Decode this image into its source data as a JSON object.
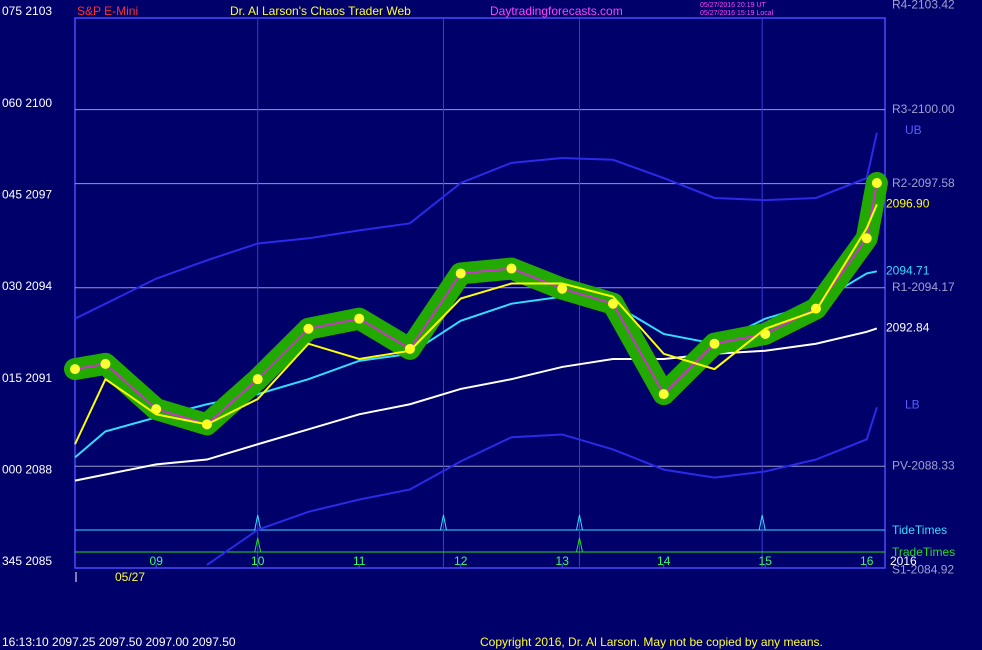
{
  "chart_data": {
    "type": "line",
    "title": "S&P E-Mini",
    "subtitle": "Dr. Al Larson's Chaos Trader Web",
    "site": "Daytradingforecasts.com",
    "timestamps": [
      "05/27/2016 20:19 UT",
      "05/27/2016 15:19 Local"
    ],
    "date_label": "05/27",
    "x": [
      8.2,
      8.5,
      9,
      9.5,
      10,
      10.5,
      11,
      11.5,
      12,
      12.5,
      13,
      13.5,
      14,
      14.5,
      15,
      15.5,
      16,
      16.1
    ],
    "xlim": [
      8.2,
      16.18
    ],
    "xticks": [
      {
        "value": 9,
        "label": "09"
      },
      10,
      11,
      12,
      13,
      14,
      15,
      16
    ],
    "ylim": [
      2085,
      2103
    ],
    "yticks": [
      {
        "value": 2085,
        "label": "345 2085"
      },
      {
        "value": 2088,
        "label": "000 2088"
      },
      {
        "value": 2091,
        "label": "015 2091"
      },
      {
        "value": 2094,
        "label": "030 2094"
      },
      {
        "value": 2097,
        "label": "045 2097"
      },
      {
        "value": 2100,
        "label": "060 2100"
      },
      {
        "value": 2103,
        "label": "075 2103"
      }
    ],
    "levels": [
      {
        "value": 2103.42,
        "label": "R4-2103.42"
      },
      {
        "value": 2100.0,
        "label": "R3-2100.00"
      },
      {
        "value": 2097.58,
        "label": "R2-2097.58"
      },
      {
        "value": 2094.17,
        "label": "R1-2094.17"
      },
      {
        "value": 2088.33,
        "label": "PV-2088.33"
      },
      {
        "value": 2084.92,
        "label": "S1-2084.92"
      }
    ],
    "series": [
      {
        "name": "UB",
        "color": "#2a2ae8",
        "values": [
          2093.16,
          2093.65,
          2094.47,
          2095.07,
          2095.62,
          2095.79,
          2096.05,
          2096.28,
          2097.6,
          2098.26,
          2098.42,
          2098.36,
          2097.76,
          2097.11,
          2097.04,
          2097.11,
          2097.76,
          2099.24
        ]
      },
      {
        "name": "LB",
        "color": "#2a2ae8",
        "values": [
          null,
          null,
          null,
          2085.1,
          2086.25,
          2086.84,
          2087.24,
          2087.57,
          2088.49,
          2089.28,
          2089.37,
          2088.88,
          2088.22,
          2087.96,
          2088.16,
          2088.55,
          2089.21,
          2090.26
        ]
      },
      {
        "color": "#ffffff",
        "values": [
          2087.86,
          2088.06,
          2088.39,
          2088.55,
          2089.05,
          2089.54,
          2090.03,
          2090.36,
          2090.86,
          2091.18,
          2091.58,
          2091.84,
          2091.84,
          2092.01,
          2092.11,
          2092.34,
          2092.73,
          2092.84
        ],
        "value_labels": [
          null,
          null,
          null,
          null,
          null,
          null,
          null,
          null,
          null,
          null,
          null,
          null,
          null,
          null,
          null,
          null,
          null,
          "2092.84"
        ]
      },
      {
        "color": "#33ddff",
        "values": [
          2088.62,
          2089.47,
          2089.93,
          2090.36,
          2090.69,
          2091.18,
          2091.78,
          2092.01,
          2093.09,
          2093.65,
          2093.88,
          2093.65,
          2092.66,
          2092.34,
          2093.16,
          2093.65,
          2094.64,
          2094.71
        ],
        "value_labels": [
          null,
          null,
          null,
          null,
          null,
          null,
          null,
          null,
          null,
          null,
          null,
          null,
          null,
          null,
          null,
          null,
          null,
          "2094.71"
        ]
      },
      {
        "color": "#22aa00",
        "markers": true,
        "values": [
          2091.51,
          2091.68,
          2090.2,
          2089.7,
          2091.18,
          2092.83,
          2093.16,
          2092.17,
          2094.64,
          2094.8,
          2094.14,
          2093.65,
          2090.69,
          2092.34,
          2092.66,
          2093.49,
          2095.79,
          2097.6
        ]
      },
      {
        "color": "#ffff00",
        "values": [
          2089.05,
          2091.18,
          2090.03,
          2089.7,
          2090.53,
          2092.34,
          2091.84,
          2092.11,
          2093.82,
          2094.31,
          2094.31,
          2093.88,
          2092.01,
          2091.51,
          2092.83,
          2093.42,
          2096.12,
          2096.9
        ],
        "value_labels": [
          null,
          null,
          null,
          null,
          null,
          null,
          null,
          null,
          null,
          null,
          null,
          null,
          null,
          null,
          null,
          null,
          null,
          "2096.90"
        ]
      }
    ],
    "tide_times": {
      "label": "TideTimes",
      "color": "#33ddff",
      "x": [
        10,
        11.83,
        13.17,
        14.97
      ]
    },
    "trade_times": {
      "label": "TradeTimes",
      "color": "#22dd22",
      "x": [
        10,
        13.17
      ]
    },
    "year_label": "2016",
    "quote": "16:13:10  2097.25  2097.50  2097.00  2097.50",
    "copyright": "Copyright 2016, Dr. Al Larson. May not be copied by any means."
  }
}
